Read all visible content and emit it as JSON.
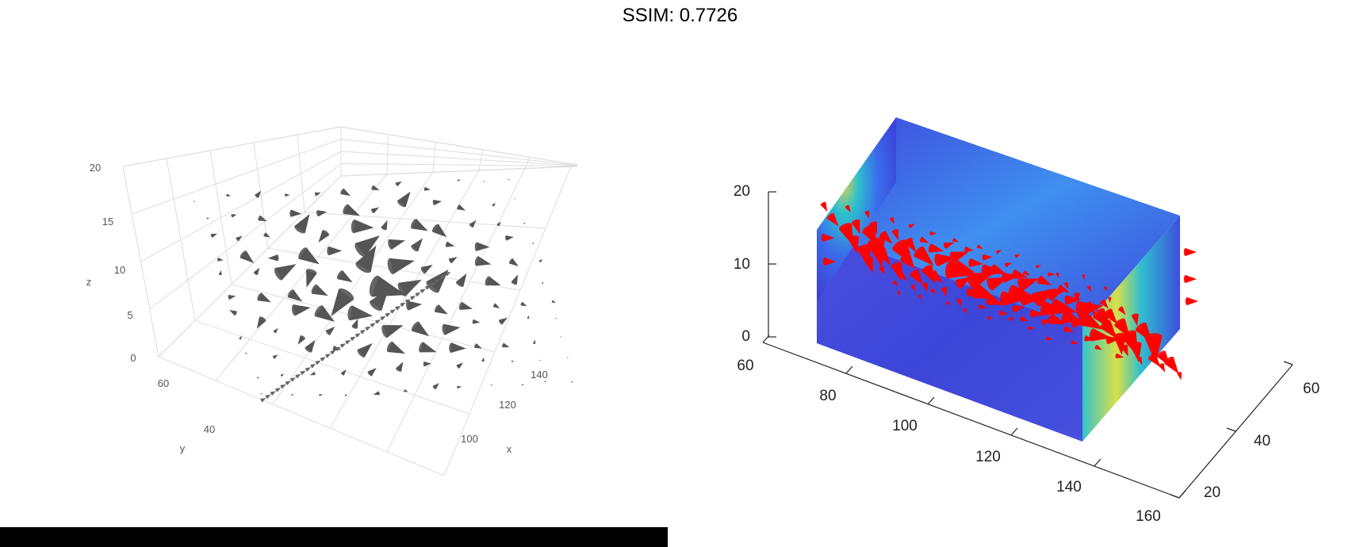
{
  "title": "SSIM: 0.7726",
  "colors": {
    "cone_left": "#555555",
    "cone_right": "#ff0000",
    "grid": "#dddddd",
    "slice_low": "#3a3fd6",
    "slice_high": "#f3e43a"
  },
  "chart_data": [
    {
      "type": "3d-cone",
      "renderer": "plotly-style",
      "axes": {
        "x": {
          "label": "x",
          "ticks": [
            "100",
            "120",
            "140"
          ]
        },
        "y": {
          "label": "y",
          "ticks": [
            "40",
            "60"
          ]
        },
        "z": {
          "label": "z",
          "ticks": [
            "0",
            "5",
            "10",
            "15",
            "20"
          ],
          "range": [
            0,
            20
          ]
        }
      },
      "grid": true,
      "cone_color": "gray"
    },
    {
      "type": "3d-cone-with-slices",
      "renderer": "matlab-style",
      "axes": {
        "x": {
          "ticks": [
            "60",
            "80",
            "100",
            "120",
            "140",
            "160"
          ],
          "range": [
            60,
            160
          ]
        },
        "y": {
          "ticks": [
            "20",
            "40",
            "60"
          ],
          "range": [
            20,
            60
          ]
        },
        "z": {
          "ticks": [
            "0",
            "10",
            "20"
          ],
          "range": [
            0,
            20
          ]
        }
      },
      "grid": false,
      "cone_color": "red",
      "slice_colormap": "jet"
    }
  ]
}
